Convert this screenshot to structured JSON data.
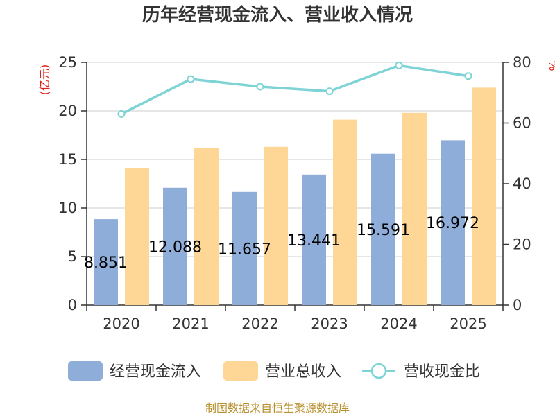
{
  "chart_data": {
    "type": "bar",
    "title": "历年经营现金流入、营业收入情况",
    "categories": [
      "2020",
      "2021",
      "2022",
      "2023",
      "2024",
      "2025"
    ],
    "series": [
      {
        "name": "经营现金流入",
        "type": "bar",
        "axis": "left",
        "color": "#8eadd9",
        "values": [
          8.851,
          12.088,
          11.657,
          13.441,
          15.591,
          16.972
        ],
        "labels": [
          "8.851",
          "12.088",
          "11.657",
          "13.441",
          "15.591",
          "16.972"
        ]
      },
      {
        "name": "营业总收入",
        "type": "bar",
        "axis": "left",
        "color": "#fed797",
        "values": [
          14.1,
          16.2,
          16.3,
          19.1,
          19.8,
          22.4
        ]
      },
      {
        "name": "营收现金比",
        "type": "line",
        "axis": "right",
        "color": "#7dd3d6",
        "values": [
          63.0,
          74.5,
          72.0,
          70.5,
          79.0,
          75.5
        ]
      }
    ],
    "ylabel": "(亿元)",
    "y2label": "%",
    "ylim": [
      0,
      25
    ],
    "y2lim": [
      0,
      80
    ],
    "yticks": [
      0,
      5,
      10,
      15,
      20,
      25
    ],
    "y2ticks": [
      0,
      20,
      40,
      60,
      80
    ],
    "grid": true,
    "legend_position": "bottom"
  },
  "source_text": "制图数据来自恒生聚源数据库"
}
